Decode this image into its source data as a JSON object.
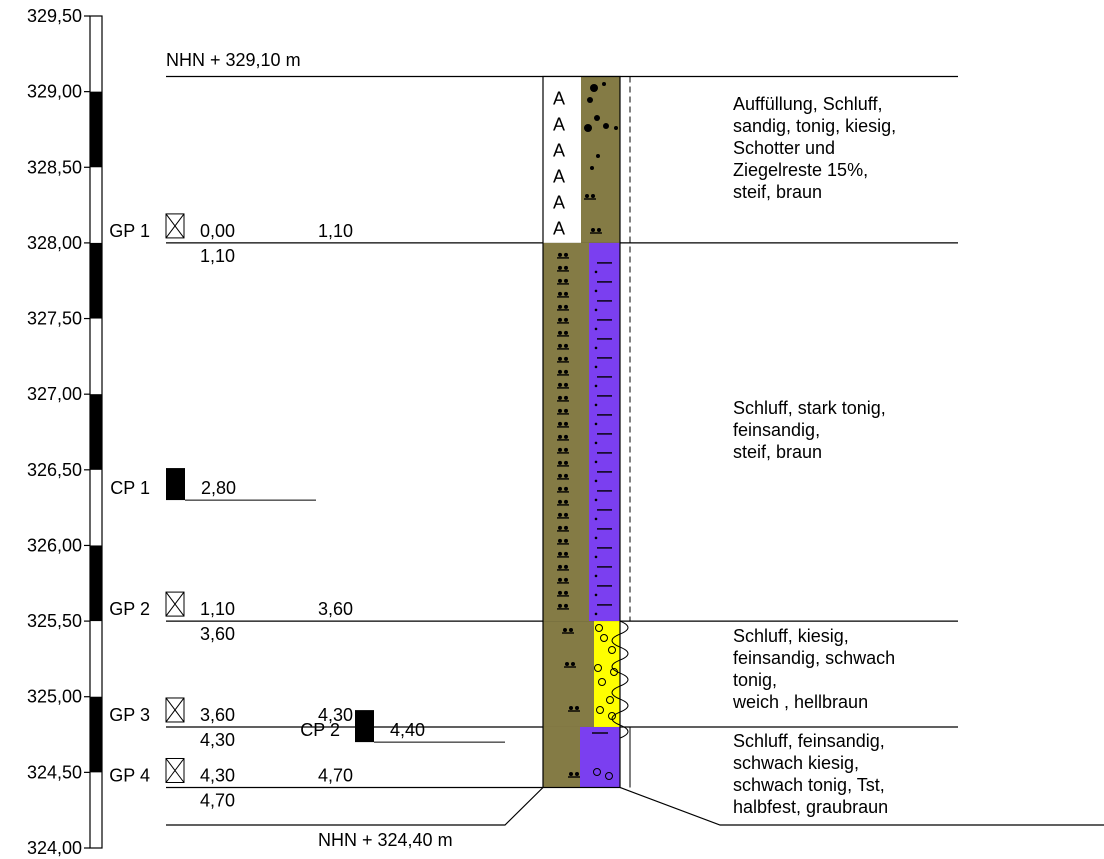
{
  "colors": {
    "silt": "#847b45",
    "clay": "#7b3ff0",
    "sand_gravel": "#ffff00",
    "fill_white": "#ffffff",
    "line": "#000000"
  },
  "elevation_axis": {
    "min": 324.0,
    "max": 329.5,
    "labels": [
      {
        "value": 329.5,
        "text": "329,50"
      },
      {
        "value": 329.0,
        "text": "329,00"
      },
      {
        "value": 328.5,
        "text": "328,50"
      },
      {
        "value": 328.0,
        "text": "328,00"
      },
      {
        "value": 327.5,
        "text": "327,50"
      },
      {
        "value": 327.0,
        "text": "327,00"
      },
      {
        "value": 326.5,
        "text": "326,50"
      },
      {
        "value": 326.0,
        "text": "326,00"
      },
      {
        "value": 325.5,
        "text": "325,50"
      },
      {
        "value": 325.0,
        "text": "325,00"
      },
      {
        "value": 324.5,
        "text": "324,50"
      },
      {
        "value": 324.0,
        "text": "324,00"
      }
    ]
  },
  "top_level": {
    "elevation": 329.1,
    "text": "NHN + 329,10 m"
  },
  "bottom_level": {
    "elevation": 324.4,
    "text": "NHN + 324,40 m"
  },
  "samples": [
    {
      "id": "GP 1",
      "kind": "GP",
      "from": "0,00",
      "to": "1,10",
      "from_m": 0.0,
      "to_m": 1.1
    },
    {
      "id": "GP 2",
      "kind": "GP",
      "from": "1,10",
      "to": "3,60",
      "from_m": 1.1,
      "to_m": 3.6
    },
    {
      "id": "GP 3",
      "kind": "GP",
      "from": "3,60",
      "to": "4,30",
      "from_m": 3.6,
      "to_m": 4.3
    },
    {
      "id": "GP 4",
      "kind": "GP",
      "from": "4,30",
      "to": "4,70",
      "from_m": 4.3,
      "to_m": 4.7
    },
    {
      "id": "CP 1",
      "kind": "CP",
      "depth": "2,80",
      "depth_m": 2.8
    },
    {
      "id": "CP 2",
      "kind": "CP",
      "depth": "4,40",
      "depth_m": 4.4
    }
  ],
  "layers": [
    {
      "top": 0.0,
      "bottom": 1.1,
      "bottom_label": "1,10",
      "description": [
        "Auffüllung, Schluff,",
        "sandig, tonig, kiesig,",
        "Schotter und",
        "Ziegelreste 15%,",
        "steif, braun"
      ]
    },
    {
      "top": 1.1,
      "bottom": 3.6,
      "bottom_label": "3,60",
      "description": [
        "Schluff, stark tonig,",
        "feinsandig,",
        "steif, braun"
      ]
    },
    {
      "top": 3.6,
      "bottom": 4.3,
      "bottom_label": "4,30",
      "description": [
        "Schluff, kiesig,",
        "feinsandig, schwach",
        "tonig,",
        "weich , hellbraun"
      ]
    },
    {
      "top": 4.3,
      "bottom": 4.7,
      "bottom_label": "4,70",
      "description": [
        "Schluff, feinsandig,",
        "schwach kiesig,",
        "schwach tonig, Tst,",
        "halbfest, graubraun"
      ]
    }
  ]
}
